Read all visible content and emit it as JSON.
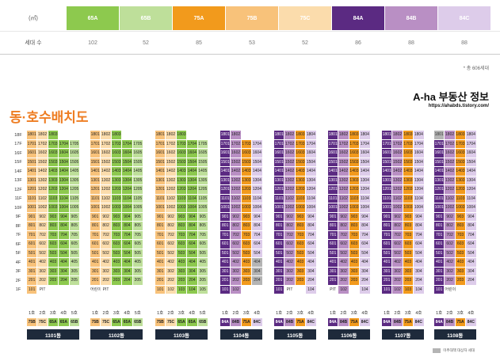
{
  "area_table": {
    "unit_label": "(㎡)",
    "count_label": "세대 수",
    "types": [
      {
        "name": "65A",
        "count": "102",
        "color": "#8dc94e"
      },
      {
        "name": "65B",
        "count": "52",
        "color": "#bedf9a"
      },
      {
        "name": "75A",
        "count": "85",
        "color": "#f29a1c"
      },
      {
        "name": "75B",
        "count": "53",
        "color": "#f8c27a"
      },
      {
        "name": "75C",
        "count": "52",
        "color": "#fbdcac"
      },
      {
        "name": "84A",
        "count": "86",
        "color": "#5b2a82"
      },
      {
        "name": "84B",
        "count": "88",
        "color": "#b98fc4"
      },
      {
        "name": "84C",
        "count": "88",
        "color": "#ddccea"
      }
    ]
  },
  "total_note": "* 총 606세대",
  "brand": {
    "name": "A-ha 부동산 정보",
    "url": "https://ahabds.tistory.com/"
  },
  "section_title": "동·호수배치도",
  "floors": [
    "18F",
    "17F",
    "16F",
    "15F",
    "14F",
    "13F",
    "12F",
    "11F",
    "10F",
    "9F",
    "8F",
    "7F",
    "6F",
    "5F",
    "4F",
    "3F",
    "2F",
    "1F"
  ],
  "buildings": [
    {
      "name": "1101동",
      "first": [
        "101",
        "PIT",
        "",
        "",
        ""
      ],
      "lines": [
        "1호",
        "2호",
        "3호",
        "4호",
        "5호"
      ],
      "types": [
        "75B",
        "75C",
        "65A",
        "65A",
        "65B"
      ],
      "top_floors": [
        18,
        18,
        18,
        17,
        17
      ],
      "missing": []
    },
    {
      "name": "1102동",
      "first": [
        "어린이집",
        "PIT",
        "",
        "",
        ""
      ],
      "lines": [
        "1호",
        "2호",
        "3호",
        "4호",
        "5호"
      ],
      "types": [
        "75B",
        "75C",
        "65A",
        "65A",
        "65B"
      ],
      "top_floors": [
        18,
        18,
        18,
        17,
        17
      ],
      "missing": []
    },
    {
      "name": "1103동",
      "first": [
        "101",
        "102",
        "103",
        "104",
        "105"
      ],
      "lines": [
        "1호",
        "2호",
        "3호",
        "4호",
        "5호"
      ],
      "types": [
        "75B",
        "75C",
        "65A",
        "65A",
        "65B"
      ],
      "top_floors": [
        18,
        18,
        18,
        17,
        17
      ],
      "missing": []
    },
    {
      "name": "1104동",
      "first": [
        "101",
        "102",
        "",
        "",
        ""
      ],
      "lines": [
        "1호",
        "2호",
        "3호",
        "4호"
      ],
      "types": [
        "84A",
        "84B",
        "75A",
        "84C"
      ],
      "top_floors": [
        18,
        18,
        17,
        17
      ],
      "missing": [
        "404",
        "304",
        "204",
        "104"
      ]
    },
    {
      "name": "1105동",
      "first": [
        "101",
        "PIT",
        "",
        "104"
      ],
      "lines": [
        "1호",
        "2호",
        "3호",
        "4호"
      ],
      "types": [
        "84A",
        "84B",
        "75A",
        "84C"
      ],
      "top_floors": [
        18,
        18,
        18,
        18
      ],
      "missing": []
    },
    {
      "name": "1106동",
      "first": [
        "PIT",
        "102",
        "",
        "104"
      ],
      "lines": [
        "1호",
        "2호",
        "3호",
        "4호"
      ],
      "types": [
        "84A",
        "84B",
        "75A",
        "84C"
      ],
      "top_floors": [
        18,
        18,
        18,
        18
      ],
      "missing": []
    },
    {
      "name": "1107동",
      "first": [
        "101",
        "102",
        "103",
        "104"
      ],
      "lines": [
        "1호",
        "2호",
        "3호",
        "4호"
      ],
      "types": [
        "84A",
        "84B",
        "75A",
        "84C"
      ],
      "top_floors": [
        18,
        18,
        18,
        18
      ],
      "missing": []
    },
    {
      "name": "1108동",
      "first": [
        "101",
        "어린이집",
        "",
        ""
      ],
      "lines": [
        "1호",
        "2호",
        "3호",
        "4호"
      ],
      "types": [
        "84A",
        "84B",
        "75A",
        "84C"
      ],
      "top_floors": [
        18,
        18,
        18,
        18
      ],
      "missing": [
        "1801"
      ]
    }
  ],
  "legend": {
    "label": "미추대책 대상자 세대",
    "color": "#b4b4b4"
  }
}
